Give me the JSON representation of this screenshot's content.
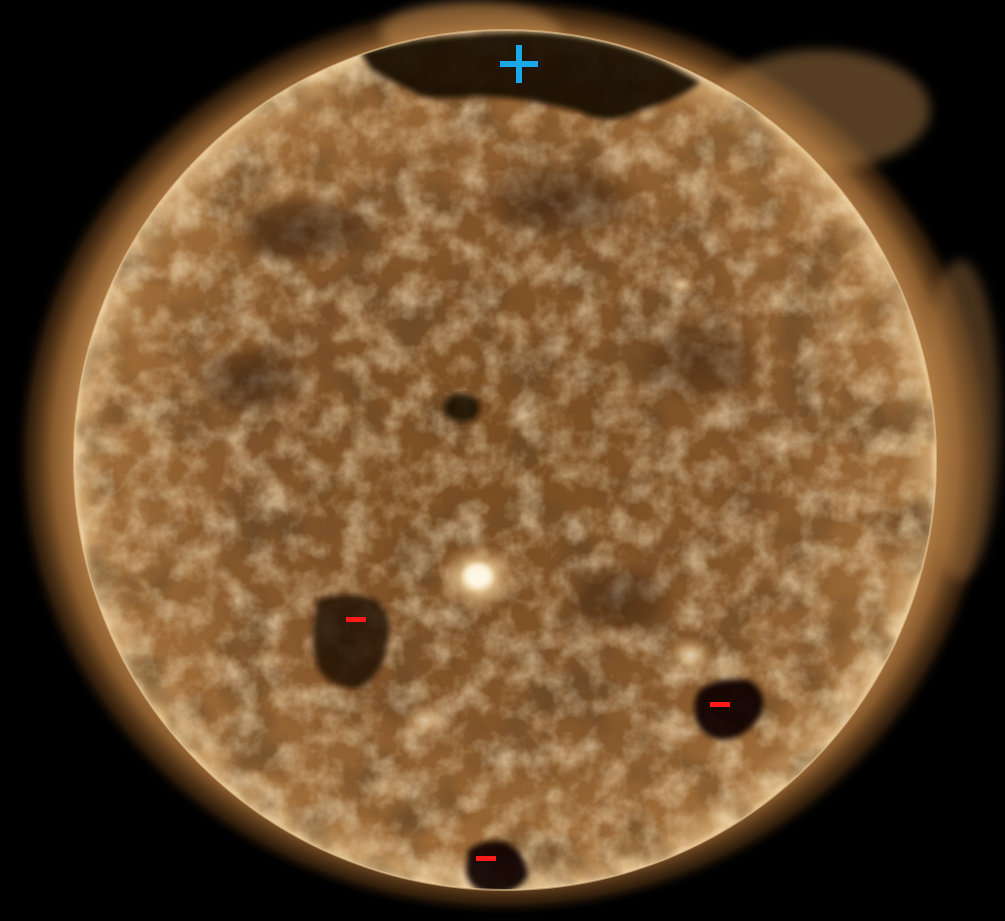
{
  "image": {
    "subject": "sun-extreme-ultraviolet-view",
    "background_color": "#000000",
    "disk_color": "#8a5a2a",
    "corona_color": "#c08a50",
    "coronal_hole_color": "#1a0d05",
    "active_region_color": "#f5e2b8"
  },
  "markers": [
    {
      "name": "polarity-positive-north",
      "glyph": "+",
      "color": "#1ba8e8"
    },
    {
      "name": "polarity-negative-southwest",
      "glyph": "−",
      "color": "#ff1a1a"
    },
    {
      "name": "polarity-negative-southeast",
      "glyph": "−",
      "color": "#ff1a1a"
    },
    {
      "name": "polarity-negative-south-pole",
      "glyph": "−",
      "color": "#ff1a1a"
    }
  ]
}
